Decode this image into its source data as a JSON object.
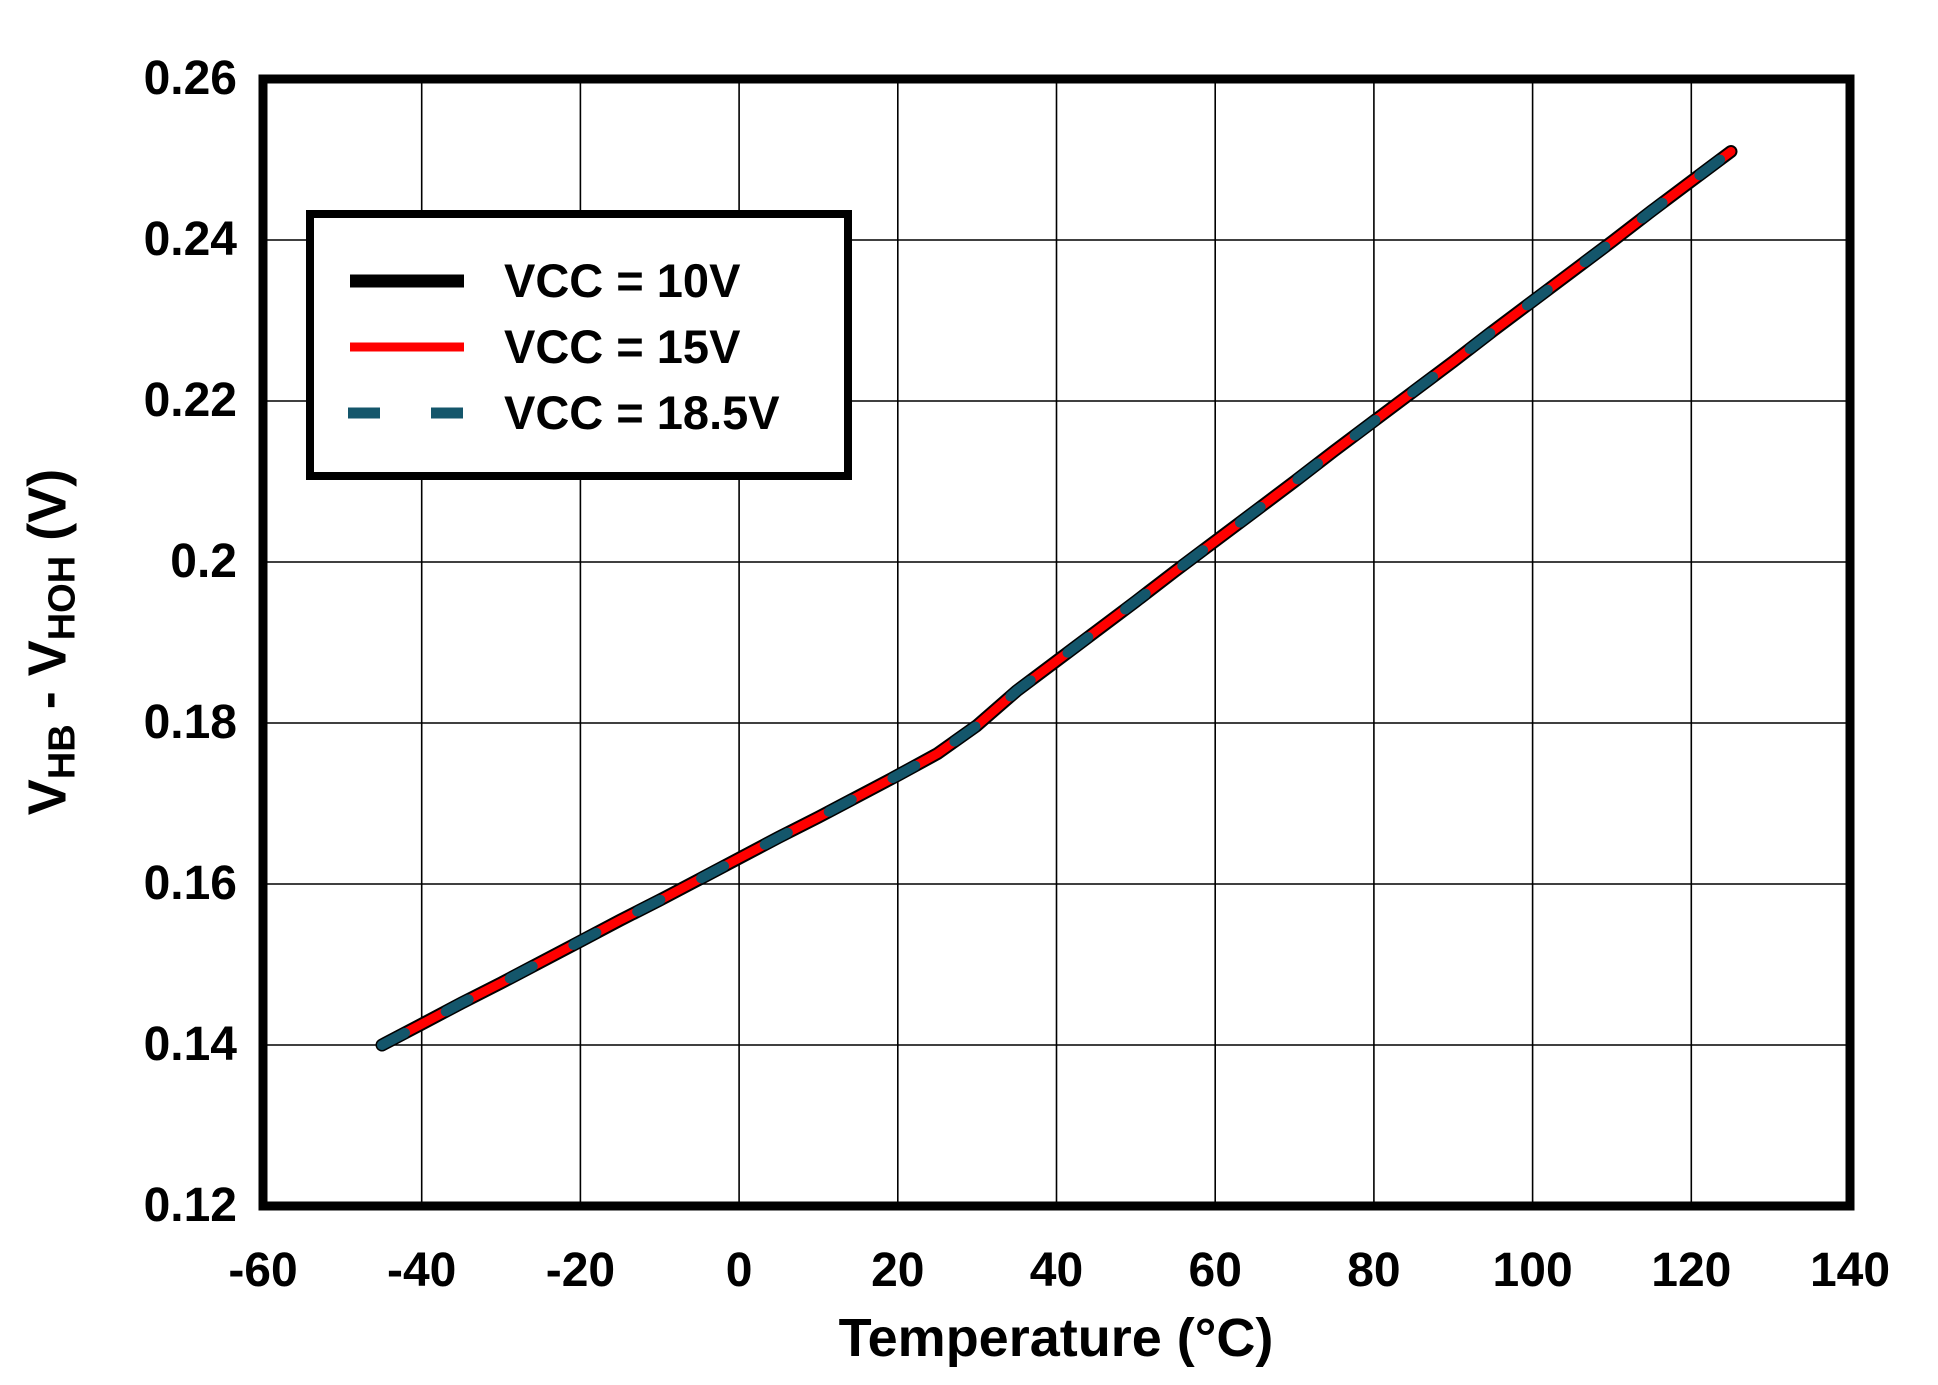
{
  "figure": {
    "background_color": "#ffffff",
    "frame_color": "#000000",
    "gridline_color": "#000000"
  },
  "chart_data": {
    "type": "line",
    "title": "",
    "xlabel": "Temperature (°C)",
    "ylabel": "VHB - VHOH (V)",
    "ylabel_parts": [
      {
        "text": "V"
      },
      {
        "sub": "HB"
      },
      {
        "text": " - V"
      },
      {
        "sub": "HOH"
      },
      {
        "text": " (V)"
      }
    ],
    "xlim": [
      -60,
      140
    ],
    "ylim": [
      0.12,
      0.26
    ],
    "x_tick_labels": [
      "-60",
      "-40",
      "-20",
      "0",
      "20",
      "40",
      "60",
      "80",
      "100",
      "120",
      "140"
    ],
    "y_tick_labels": [
      "0.12",
      "0.14",
      "0.16",
      "0.18",
      "0.2",
      "0.22",
      "0.24",
      "0.26"
    ],
    "grid": true,
    "legend": {
      "position": "top-left",
      "entries": [
        "VCC = 10V",
        "VCC = 15V",
        "VCC = 18.5V"
      ]
    },
    "x": [
      -45,
      -40,
      -35,
      -30,
      -25,
      -20,
      -15,
      -10,
      -5,
      0,
      5,
      10,
      15,
      20,
      25,
      30,
      35,
      40,
      45,
      50,
      55,
      60,
      65,
      70,
      75,
      80,
      85,
      90,
      95,
      100,
      105,
      110,
      115,
      120,
      125
    ],
    "series": [
      {
        "name": "VCC = 10V",
        "color": "#000000",
        "line_style": "solid",
        "y": [
          0.14,
          0.1426,
          0.1452,
          0.1477,
          0.1503,
          0.1529,
          0.1555,
          0.158,
          0.1606,
          0.1632,
          0.1658,
          0.1683,
          0.1709,
          0.1735,
          0.1762,
          0.1797,
          0.184,
          0.1877,
          0.1914,
          0.1951,
          0.1989,
          0.2026,
          0.2063,
          0.21,
          0.2138,
          0.2175,
          0.2212,
          0.2249,
          0.2287,
          0.2324,
          0.2361,
          0.2398,
          0.2436,
          0.2473,
          0.251
        ]
      },
      {
        "name": "VCC = 15V",
        "color": "#ff0000",
        "line_style": "solid",
        "y": [
          0.14,
          0.1426,
          0.1452,
          0.1477,
          0.1503,
          0.1529,
          0.1555,
          0.158,
          0.1606,
          0.1632,
          0.1658,
          0.1683,
          0.1709,
          0.1735,
          0.1762,
          0.1797,
          0.184,
          0.1877,
          0.1914,
          0.1951,
          0.1989,
          0.2026,
          0.2063,
          0.21,
          0.2138,
          0.2175,
          0.2212,
          0.2249,
          0.2287,
          0.2324,
          0.2361,
          0.2398,
          0.2436,
          0.2473,
          0.251
        ]
      },
      {
        "name": "VCC = 18.5V",
        "color": "#14566b",
        "line_style": "dashed",
        "y": [
          0.14,
          0.1426,
          0.1452,
          0.1477,
          0.1503,
          0.1529,
          0.1555,
          0.158,
          0.1606,
          0.1632,
          0.1658,
          0.1683,
          0.1709,
          0.1735,
          0.1762,
          0.1797,
          0.184,
          0.1877,
          0.1914,
          0.1951,
          0.1989,
          0.2026,
          0.2063,
          0.21,
          0.2138,
          0.2175,
          0.2212,
          0.2249,
          0.2287,
          0.2324,
          0.2361,
          0.2398,
          0.2436,
          0.2473,
          0.251
        ]
      }
    ]
  }
}
